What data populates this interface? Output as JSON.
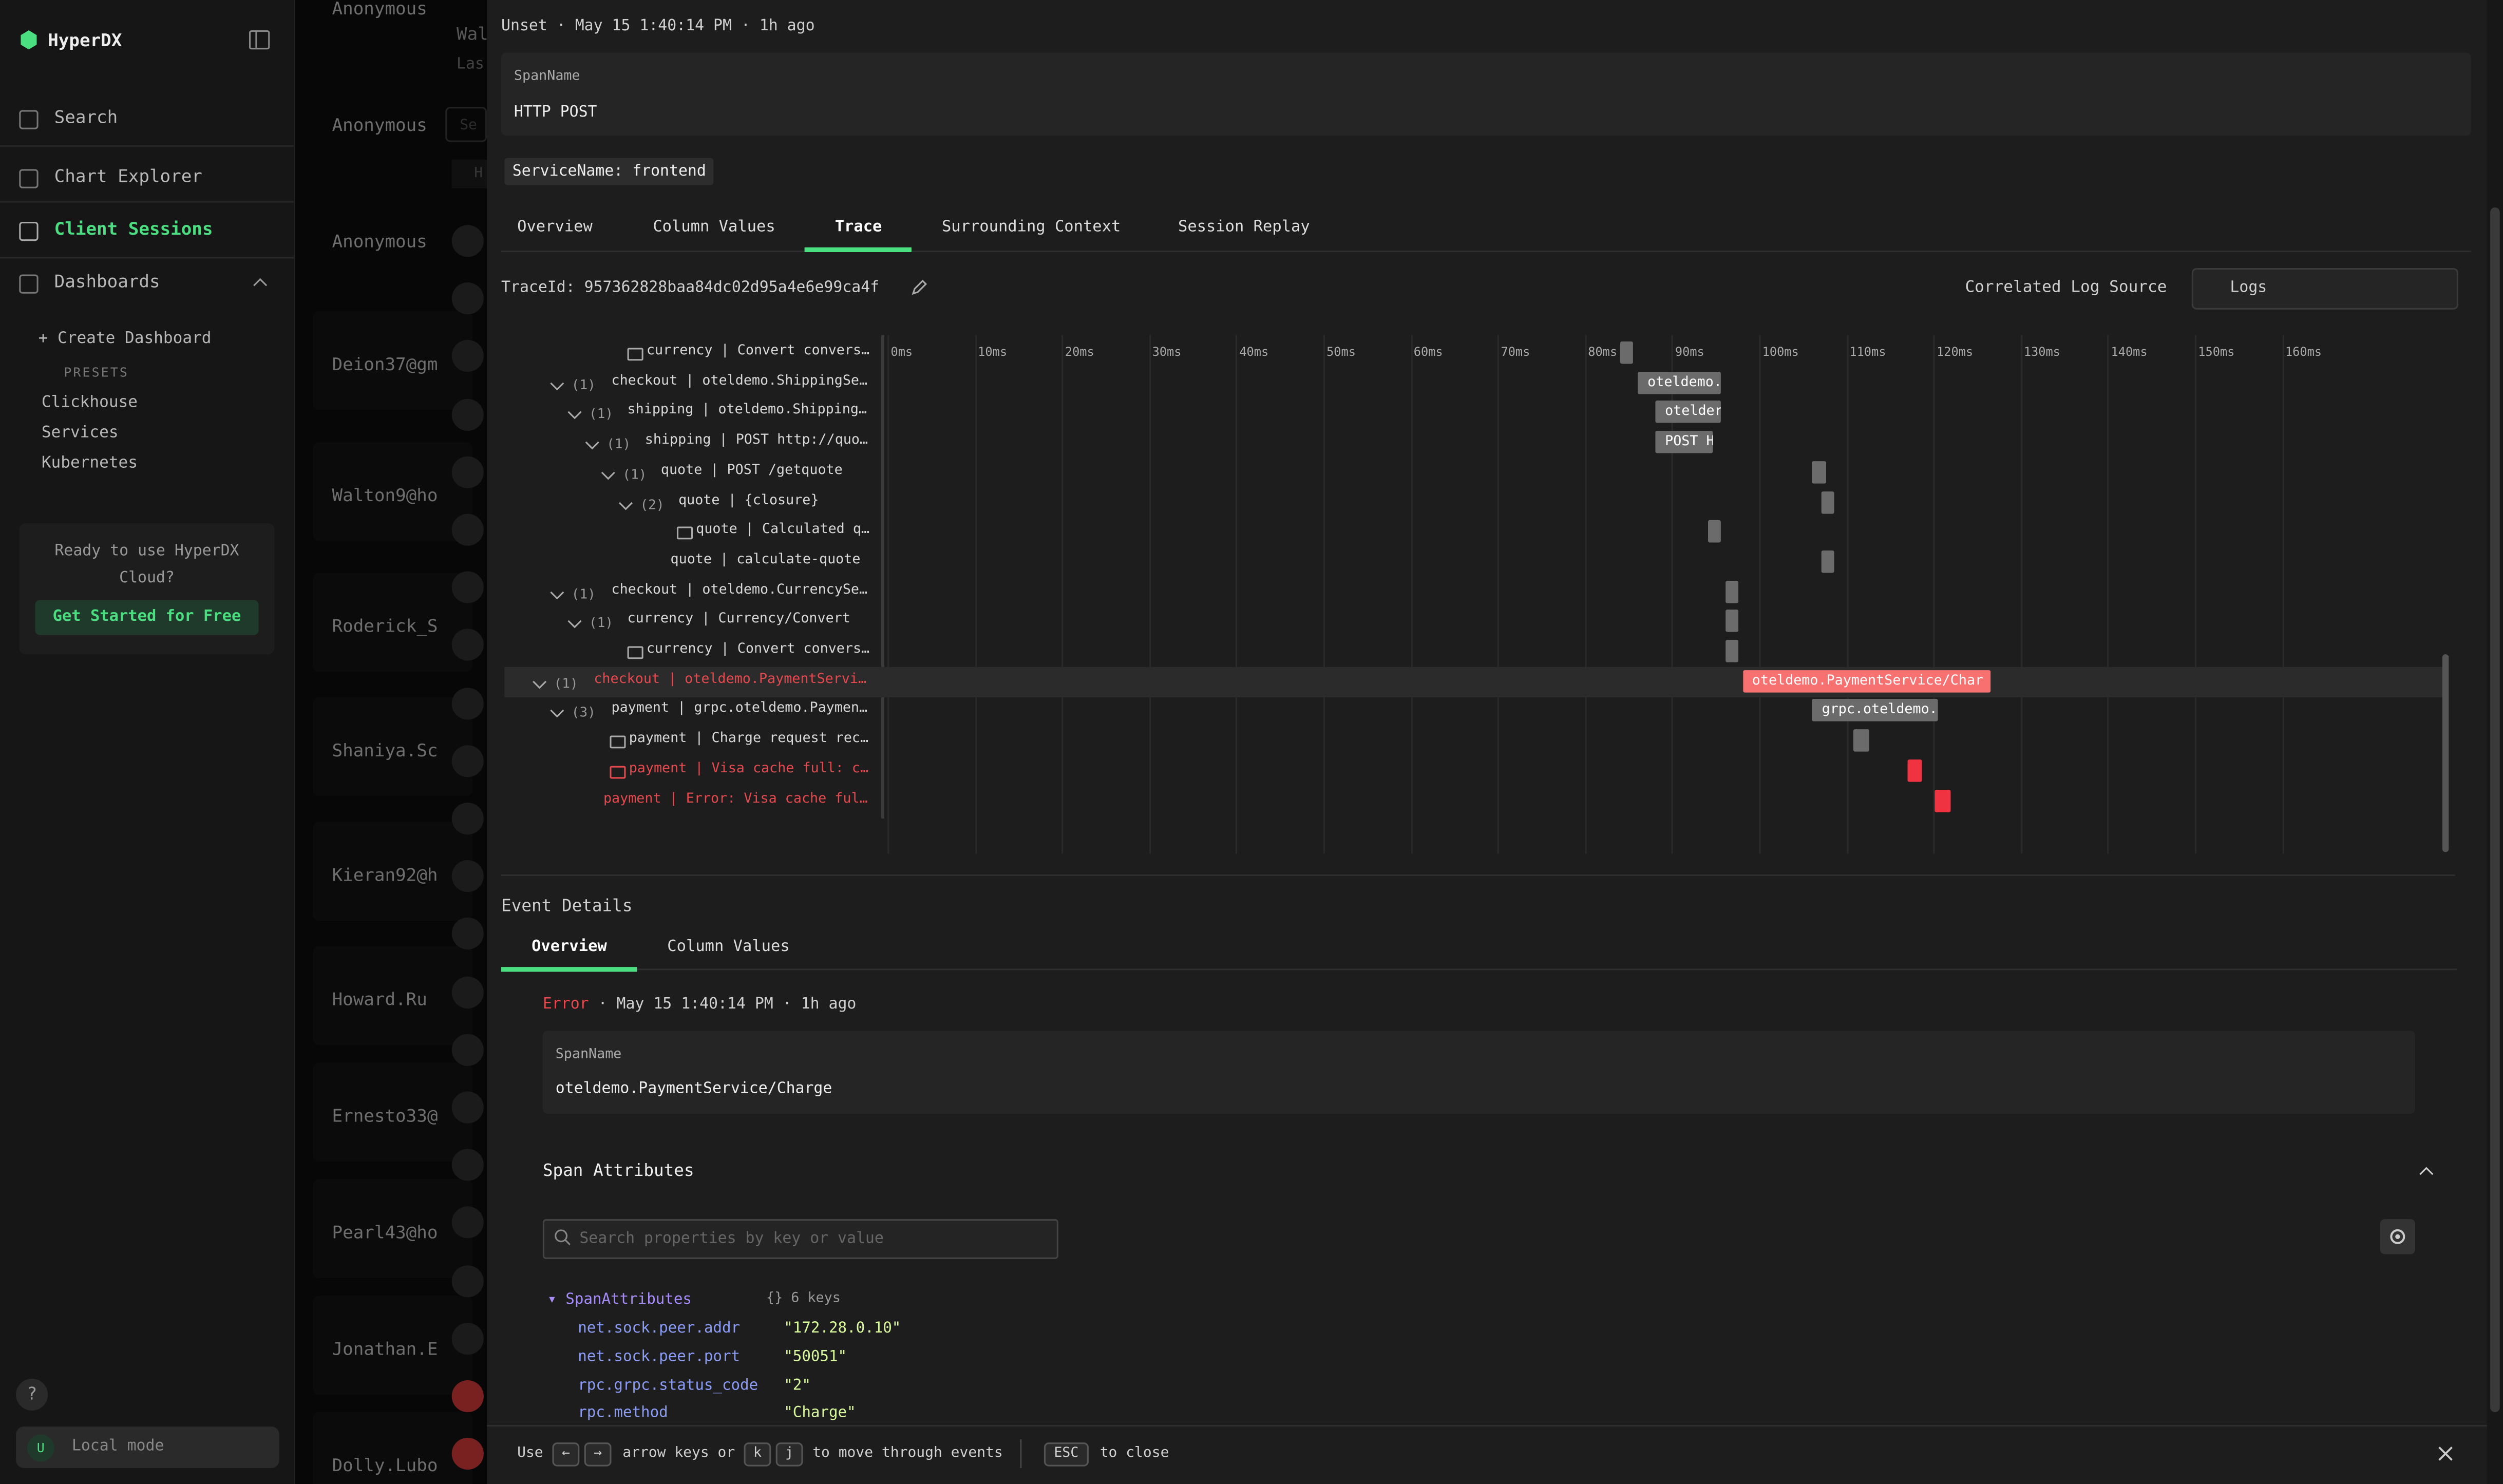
{
  "sidebar": {
    "brand": "HyperDX",
    "nav": [
      "Search",
      "Chart Explorer",
      "Client Sessions",
      "Dashboards"
    ],
    "active_nav": 2,
    "create": "+ Create Dashboard",
    "presets_label": "PRESETS",
    "presets": [
      "Clickhouse",
      "Services",
      "Kubernetes"
    ],
    "promo": "Ready to use HyperDX Cloud?",
    "promo_button": "Get Started for Free",
    "help": "?",
    "user_initial": "U",
    "mode": "Local mode"
  },
  "sessions": {
    "header": [
      "Wal",
      "Las"
    ],
    "search_hint": "Se",
    "tab_hint": "H",
    "users": [
      "Anonymous",
      "Anonymous",
      "Anonymous",
      "Deion37@gm",
      "Walton9@ho",
      "Roderick_S",
      "Shaniya.Sc",
      "Kieran92@h",
      "Howard.Ru",
      "Ernesto33@",
      "Pearl43@ho",
      "Jonathan.E",
      "Dolly.Lubo"
    ]
  },
  "panel": {
    "status": "Unset",
    "time": "May 15 1:40:14 PM",
    "ago": "1h ago",
    "span_name_label": "SpanName",
    "span_name": "HTTP POST",
    "service_tag": "ServiceName: frontend",
    "tabs": [
      "Overview",
      "Column Values",
      "Trace",
      "Surrounding Context",
      "Session Replay"
    ],
    "active_tab": 2,
    "trace_id": "TraceId: 957362828baa84dc02d95a4e6e99ca4f",
    "log_source_label": "Correlated Log Source",
    "log_source": "Logs"
  },
  "timeline": {
    "ticks": [
      "0ms",
      "10ms",
      "20ms",
      "30ms",
      "40ms",
      "50ms",
      "60ms",
      "70ms",
      "80ms",
      "90ms",
      "100ms",
      "110ms",
      "120ms",
      "130ms",
      "140ms",
      "150ms",
      "160ms"
    ],
    "rows": [
      {
        "count": null,
        "label": "currency | Convert convers…",
        "start": 83,
        "duration": 1.5,
        "error": false,
        "bar_label": null
      },
      {
        "count": "(1)",
        "label": "checkout | oteldemo.ShippingSe…",
        "start": 85,
        "duration": 9.5,
        "error": false,
        "bar_label": "oteldemo."
      },
      {
        "count": "(1)",
        "label": "shipping | oteldemo.Shipping…",
        "start": 87,
        "duration": 7.5,
        "error": false,
        "bar_label": "otelder"
      },
      {
        "count": "(1)",
        "label": "shipping | POST http://quo…",
        "start": 87,
        "duration": 6.6,
        "error": false,
        "bar_label": "POST H"
      },
      {
        "count": "(1)",
        "label": "quote | POST /getquote",
        "start": 105,
        "duration": 1.6,
        "error": false,
        "bar_label": null
      },
      {
        "count": "(2)",
        "label": "quote | {closure}",
        "start": 106,
        "duration": 1.5,
        "error": false,
        "bar_label": null
      },
      {
        "count": null,
        "label": "quote | Calculated q…",
        "start": 93,
        "duration": 1.5,
        "error": false,
        "bar_label": null
      },
      {
        "count": null,
        "label": "quote | calculate-quote",
        "start": 106,
        "duration": 1.6,
        "error": false,
        "bar_label": null
      },
      {
        "count": "(1)",
        "label": "checkout | oteldemo.CurrencySe…",
        "start": 95,
        "duration": 1.5,
        "error": false,
        "bar_label": null
      },
      {
        "count": "(1)",
        "label": "currency | Currency/Convert",
        "start": 95,
        "duration": 1.5,
        "error": false,
        "bar_label": null
      },
      {
        "count": null,
        "label": "currency | Convert convers…",
        "start": 95,
        "duration": 1.5,
        "error": false,
        "bar_label": null
      },
      {
        "count": "(1)",
        "label": "checkout | oteldemo.PaymentServi…",
        "start": 97,
        "duration": 28.5,
        "error": true,
        "bar_label": "oteldemo.PaymentService/Char"
      },
      {
        "count": "(3)",
        "label": "payment | grpc.oteldemo.Paymen…",
        "start": 105,
        "duration": 14.5,
        "error": false,
        "bar_label": "grpc.oteldemo."
      },
      {
        "count": null,
        "label": "payment | Charge request rec…",
        "start": 109.7,
        "duration": 1.8,
        "error": false,
        "bar_label": null
      },
      {
        "count": null,
        "label": "payment | Visa cache full: c…",
        "start": 116,
        "duration": 1.6,
        "error": true,
        "bar_label": null
      },
      {
        "count": null,
        "label": "payment | Error: Visa cache ful…",
        "start": 119,
        "duration": 1.8,
        "error": true,
        "bar_label": null
      }
    ]
  },
  "event": {
    "title": "Event Details",
    "tabs": [
      "Overview",
      "Column Values"
    ],
    "active_tab": 0,
    "status": "Error",
    "time": "May 15 1:40:14 PM",
    "ago": "1h ago",
    "span_name_label": "SpanName",
    "span_name": "oteldemo.PaymentService/Charge",
    "section": "Span Attributes",
    "search_placeholder": "Search properties by key or value",
    "root": "SpanAttributes",
    "keys": "{} 6 keys",
    "attributes": [
      {
        "key": "net.sock.peer.addr",
        "value": "\"172.28.0.10\""
      },
      {
        "key": "net.sock.peer.port",
        "value": "\"50051\""
      },
      {
        "key": "rpc.grpc.status_code",
        "value": "\"2\""
      },
      {
        "key": "rpc.method",
        "value": "\"Charge\""
      }
    ]
  },
  "footer": {
    "use": "Use",
    "left": "←",
    "right": "→",
    "arrows": "arrow keys or",
    "k": "k",
    "j": "j",
    "move": "to move through events",
    "esc": "ESC",
    "close": "to close"
  }
}
